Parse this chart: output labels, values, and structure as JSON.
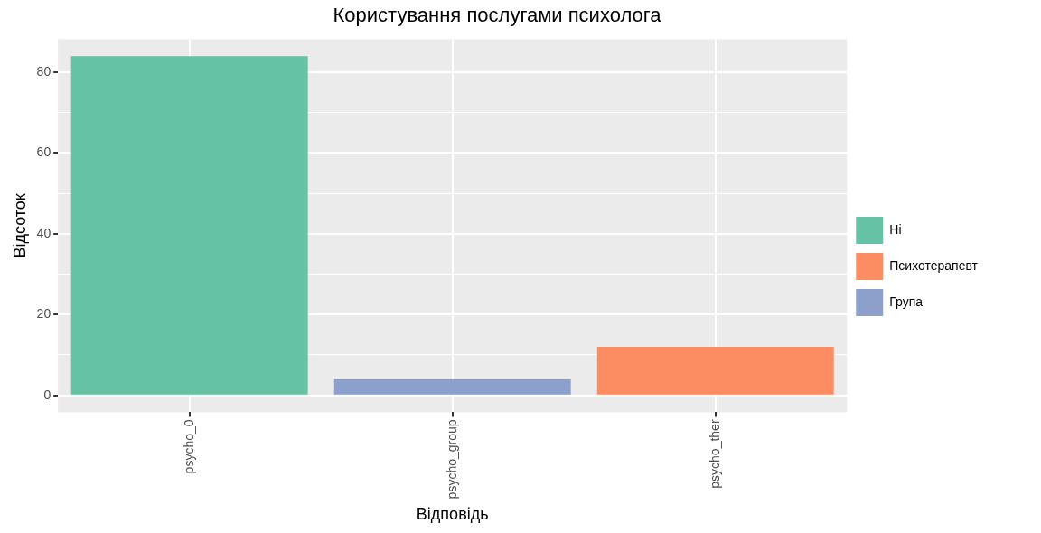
{
  "chart_data": {
    "type": "bar",
    "title": "Користування послугами психолога",
    "xlabel": "Відповідь",
    "ylabel": "Відсоток",
    "categories": [
      "psycho_0",
      "psycho_group",
      "psycho_ther"
    ],
    "series": [
      {
        "name": "Ні",
        "color": "#66c2a5",
        "values": [
          84,
          null,
          null
        ]
      },
      {
        "name": "Психотерапевт",
        "color": "#fc8d62",
        "values": [
          null,
          null,
          12
        ]
      },
      {
        "name": "Група",
        "color": "#8da0cb",
        "values": [
          null,
          4,
          null
        ]
      }
    ],
    "ylim": [
      -4.2,
      88.2
    ],
    "yticks": [
      0,
      {
        "value": 10,
        "label": null
      },
      20,
      {
        "value": 30,
        "label": null
      },
      40,
      {
        "value": 50,
        "label": null
      },
      60,
      {
        "value": 70,
        "label": null
      },
      80
    ],
    "grid": true,
    "legend": "right"
  }
}
